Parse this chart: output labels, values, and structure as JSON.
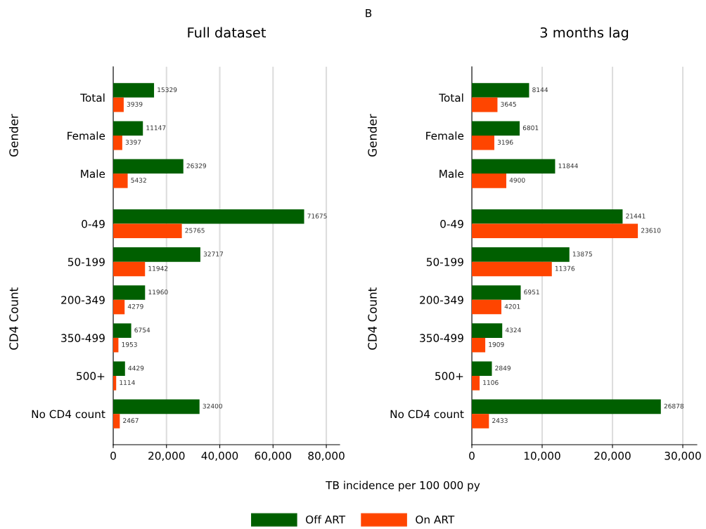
{
  "chart_data": [
    {
      "type": "bar",
      "orientation": "horizontal",
      "title": "Full dataset",
      "xlabel": "TB incidence per 100 000 py",
      "categories": [
        "Total",
        "Female",
        "Male",
        "0-49",
        "50-199",
        "200-349",
        "350-499",
        "500+",
        "No CD4 count"
      ],
      "series": [
        {
          "name": "Off ART",
          "color": "#005f00",
          "values": [
            15329,
            11147,
            26329,
            71675,
            32717,
            11960,
            6754,
            4429,
            32400
          ]
        },
        {
          "name": "On ART",
          "color": "#ff4500",
          "values": [
            3939,
            3397,
            5432,
            25765,
            11942,
            4279,
            1953,
            1114,
            2467
          ]
        }
      ],
      "xlim": [
        0,
        85000
      ],
      "xticks": [
        {
          "value": 0,
          "label": "0"
        },
        {
          "value": 20000,
          "label": "20,000"
        },
        {
          "value": 40000,
          "label": "40,000"
        },
        {
          "value": 60000,
          "label": "60,000"
        },
        {
          "value": 80000,
          "label": "80,000"
        }
      ],
      "grid": "x",
      "data_labels": true,
      "legend": "bottom",
      "annotations": [
        "B",
        "Gender",
        "CD4 Count"
      ]
    },
    {
      "type": "bar",
      "orientation": "horizontal",
      "title": "3 months lag",
      "categories": [
        "Total",
        "Female",
        "Male",
        "0-49",
        "50-199",
        "200-349",
        "350-499",
        "500+",
        "No CD4 count"
      ],
      "series": [
        {
          "color": "#005f00",
          "values": [
            8144,
            6801,
            11844,
            21441,
            13875,
            6951,
            4324,
            2849,
            26878
          ]
        },
        {
          "color": "#ff4500",
          "values": [
            3645,
            3196,
            4900,
            23610,
            11376,
            4201,
            1909,
            1106,
            2433
          ]
        }
      ],
      "xlim": [
        0,
        32000
      ],
      "xticks": [
        {
          "value": 0,
          "label": "0"
        },
        {
          "value": 10000,
          "label": "10,000"
        },
        {
          "value": 20000,
          "label": "20,000"
        },
        {
          "value": 30000,
          "label": "30,000"
        }
      ],
      "grid": "x",
      "data_labels": true,
      "annotations": [
        "Gender",
        "CD4 Count"
      ]
    }
  ]
}
